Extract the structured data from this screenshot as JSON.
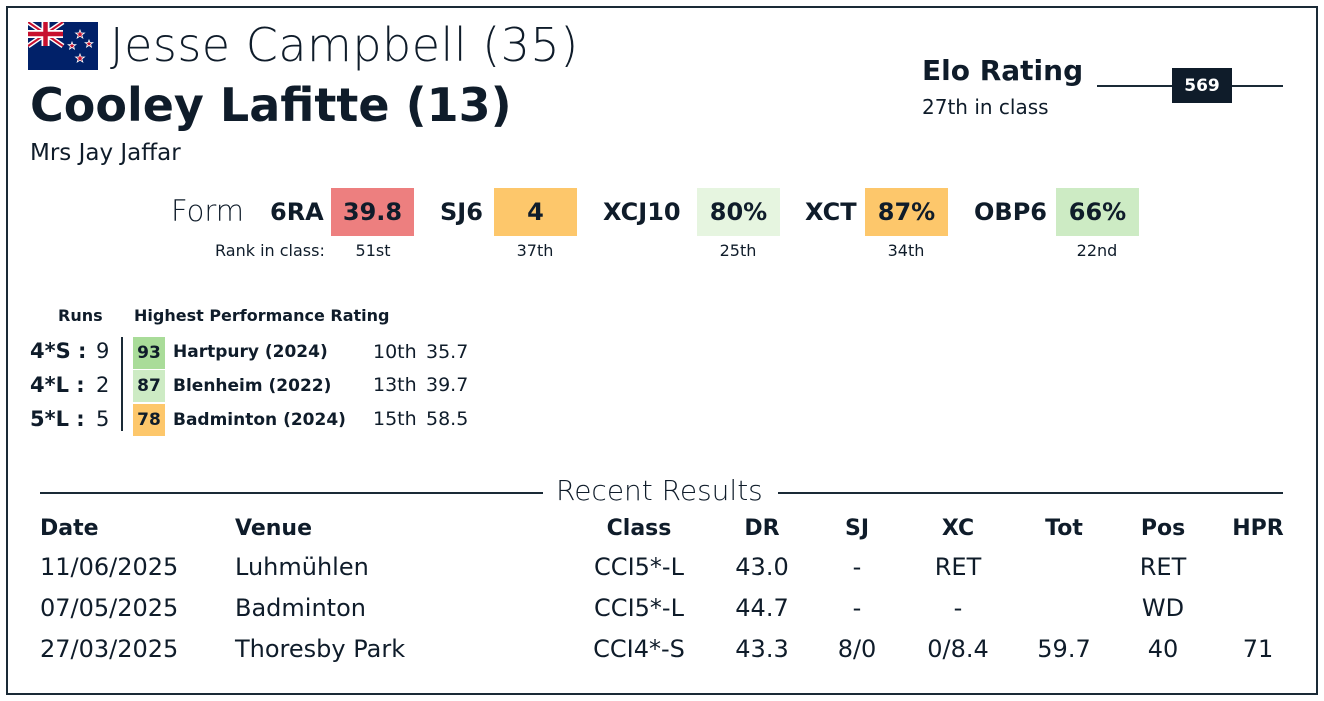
{
  "rider": {
    "name_age": "Jesse Campbell (35)",
    "flag_icon": "new-zealand-flag-icon"
  },
  "horse": {
    "name_age": "Cooley Lafitte (13)"
  },
  "owner": "Mrs Jay Jaffar",
  "elo": {
    "title": "Elo Rating",
    "class_rank": "27th in class",
    "value": "569"
  },
  "form": {
    "label": "Form",
    "rank_label": "Rank in class:",
    "metrics": [
      {
        "label": "6RA",
        "value": "39.8",
        "rank": "51st",
        "color": "#ed7f7f"
      },
      {
        "label": "SJ6",
        "value": "4",
        "rank": "37th",
        "color": "#fdc76b"
      },
      {
        "label": "XCJ10",
        "value": "80%",
        "rank": "25th",
        "color": "#e6f5e0"
      },
      {
        "label": "XCT",
        "value": "87%",
        "rank": "34th",
        "color": "#fdc76b"
      },
      {
        "label": "OBP6",
        "value": "66%",
        "rank": "22nd",
        "color": "#cdebc4"
      }
    ]
  },
  "runs": {
    "header": "Runs",
    "hpr_header": "Highest Performance Rating",
    "rows": [
      {
        "class": "4*S",
        "sep": ":",
        "count": "9",
        "hpr": "93",
        "hpr_color": "#a9dc99",
        "event": "Hartpury",
        "year": "(2024)",
        "pos": "10th",
        "score": "35.7"
      },
      {
        "class": "4*L",
        "sep": ":",
        "count": "2",
        "hpr": "87",
        "hpr_color": "#cdebc4",
        "event": "Blenheim",
        "year": "(2022)",
        "pos": "13th",
        "score": "39.7"
      },
      {
        "class": "5*L",
        "sep": ":",
        "count": "5",
        "hpr": "78",
        "hpr_color": "#fdc76b",
        "event": "Badminton",
        "year": "(2024)",
        "pos": "15th",
        "score": "58.5"
      }
    ]
  },
  "recent": {
    "title": "Recent Results",
    "headers": {
      "date": "Date",
      "venue": "Venue",
      "class": "Class",
      "dr": "DR",
      "sj": "SJ",
      "xc": "XC",
      "tot": "Tot",
      "pos": "Pos",
      "hpr": "HPR"
    },
    "rows": [
      {
        "date": "11/06/2025",
        "venue": "Luhmühlen",
        "class": "CCI5*-L",
        "dr": "43.0",
        "sj": "-",
        "xc": "RET",
        "tot": "",
        "pos": "RET",
        "hpr": ""
      },
      {
        "date": "07/05/2025",
        "venue": "Badminton",
        "class": "CCI5*-L",
        "dr": "44.7",
        "sj": "-",
        "xc": "-",
        "tot": "",
        "pos": "WD",
        "hpr": ""
      },
      {
        "date": "27/03/2025",
        "venue": "Thoresby Park",
        "class": "CCI4*-S",
        "dr": "43.3",
        "sj": "8/0",
        "xc": "0/8.4",
        "tot": "59.7",
        "pos": "40",
        "hpr": "71"
      }
    ]
  }
}
